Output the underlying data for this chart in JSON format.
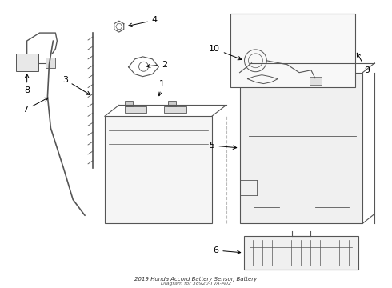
{
  "title": "2019 Honda Accord Battery Sensor, Battery",
  "subtitle": "Diagram for 38920-TVA-A02",
  "background_color": "#ffffff",
  "line_color": "#555555",
  "label_color": "#000000",
  "fig_width": 4.9,
  "fig_height": 3.6,
  "dpi": 100
}
